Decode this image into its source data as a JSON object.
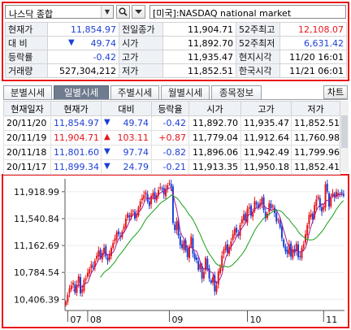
{
  "search": {
    "index_name": "나스닥 종합",
    "market_name": "[미국]:NASDAQ national market"
  },
  "quote": [
    {
      "l1": "현재가",
      "v1": "11,854.97",
      "l2": "전일종가",
      "v2": "11,904.71",
      "l3": "52주최고",
      "v3": "12,108.07"
    },
    {
      "l1": "대  비",
      "v1": "49.74",
      "l2": "시가",
      "v2": "11,892.70",
      "l3": "52주최저",
      "v3": "6,631.42"
    },
    {
      "l1": "등락률",
      "v1": "-0.42",
      "l2": "고가",
      "v2": "11,935.47",
      "l3": "현지시각",
      "v3": "11/20 16:01"
    },
    {
      "l1": "거래량",
      "v1": "527,304,212",
      "l2": "저가",
      "v2": "11,852.51",
      "l3": "한국시각",
      "v3": "11/21 06:01"
    }
  ],
  "quote_change_arrow": "▼",
  "tabs": [
    "분별시세",
    "일별시세",
    "주별시세",
    "월별시세",
    "종목정보"
  ],
  "chart_button": "차트",
  "daily": {
    "headers": [
      "현재일자",
      "현재가",
      "대비",
      "등락율",
      "시가",
      "고가",
      "저가"
    ],
    "rows": [
      {
        "date": "20/11/20",
        "price": "11,854.97",
        "arrow": "▼",
        "change": "49.74",
        "rate": "-0.42",
        "open": "11,892.70",
        "high": "11,935.47",
        "low": "11,852.51",
        "dir": "down"
      },
      {
        "date": "20/11/19",
        "price": "11,904.71",
        "arrow": "▲",
        "change": "103.11",
        "rate": "+0.87",
        "open": "11,779.04",
        "high": "11,912.64",
        "low": "11,760.98",
        "dir": "up"
      },
      {
        "date": "20/11/18",
        "price": "11,801.60",
        "arrow": "▼",
        "change": "97.74",
        "rate": "-0.82",
        "open": "11,896.06",
        "high": "11,942.49",
        "low": "11,799.96",
        "dir": "down"
      },
      {
        "date": "20/11/17",
        "price": "11,899.34",
        "arrow": "▼",
        "change": "24.79",
        "rate": "-0.21",
        "open": "11,913.35",
        "high": "11,950.18",
        "low": "11,852.41",
        "dir": "down"
      }
    ]
  },
  "colors": {
    "up": "#e8141a",
    "down": "#1b3fd6",
    "ma_short": "#a01a8c",
    "ma_long": "#18a018",
    "box": "#e8141a"
  },
  "chart_data": {
    "type": "candlestick",
    "ylim": [
      10250,
      12100
    ],
    "yticks": [
      "11,918.99",
      "11,540.84",
      "11,162.69",
      "10,784.54",
      "10,406.39"
    ],
    "ytick_values": [
      11918.99,
      11540.84,
      11162.69,
      10784.54,
      10406.39
    ],
    "xticks": [
      "07",
      "08",
      "09",
      "10",
      "11"
    ],
    "xtick_index": [
      1,
      12,
      57,
      100,
      142
    ],
    "close": [
      10370,
      10470,
      10560,
      10600,
      10640,
      10500,
      10610,
      10730,
      10490,
      10550,
      10680,
      10700,
      10780,
      10830,
      10900,
      10860,
      10950,
      11020,
      11090,
      10990,
      11060,
      11130,
      11010,
      10950,
      11040,
      11130,
      11200,
      11260,
      11350,
      11320,
      11280,
      11360,
      11430,
      11540,
      11610,
      11560,
      11620,
      11650,
      11540,
      11610,
      11700,
      11780,
      11830,
      11870,
      11910,
      11780,
      11720,
      11860,
      11900,
      11820,
      11870,
      11940,
      11980,
      11960,
      11880,
      11960,
      12010,
      12040,
      11980,
      11480,
      11380,
      11500,
      11300,
      11170,
      11130,
      11230,
      11090,
      11000,
      11150,
      11290,
      11050,
      10970,
      10960,
      10820,
      10900,
      10700,
      10790,
      10990,
      10830,
      10700,
      10640,
      10720,
      10520,
      10600,
      10800,
      10850,
      11020,
      11110,
      11170,
      11070,
      11140,
      11220,
      11320,
      11400,
      11350,
      11300,
      11450,
      11530,
      11600,
      11510,
      11680,
      11700,
      11580,
      11640,
      11790,
      11740,
      11690,
      11760,
      11830,
      11660,
      11550,
      11610,
      11760,
      11690,
      11720,
      11620,
      11500,
      11530,
      11420,
      11270,
      11150,
      11080,
      11050,
      11180,
      11010,
      11110,
      11060,
      11190,
      11000,
      11010,
      11130,
      11180,
      11320,
      11450,
      11590,
      11610,
      11530,
      11730,
      11810,
      11850,
      11700,
      11640,
      11710,
      12020,
      11920,
      11710,
      11850,
      11900,
      11840,
      11920,
      11870,
      11890,
      11900,
      11860
    ]
  }
}
